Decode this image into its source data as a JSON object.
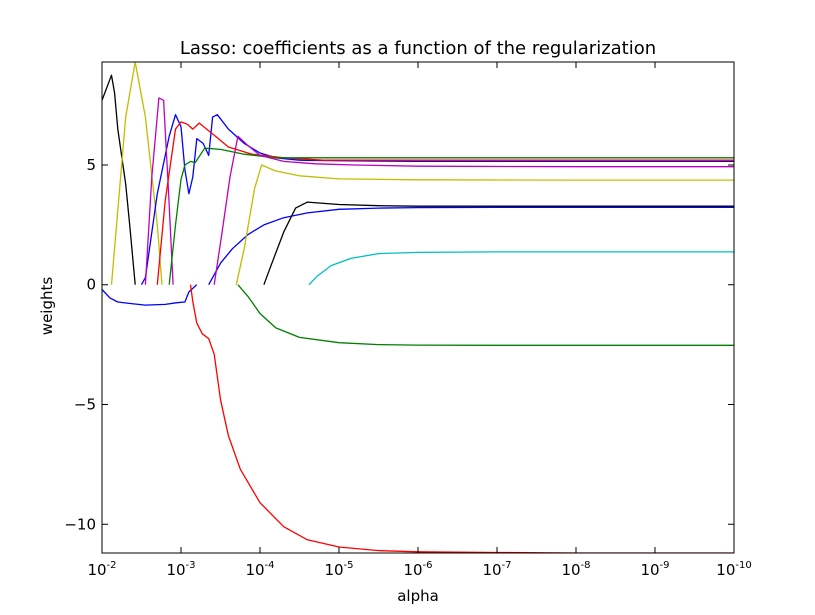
{
  "chart_data": {
    "type": "line",
    "title": "Lasso: coefficients as a function of the regularization",
    "xlabel": "alpha",
    "ylabel": "weights",
    "x_scale": "log-reversed",
    "xlim_log10": [
      -2,
      -10
    ],
    "ylim": [
      -11.2,
      9.3
    ],
    "x_ticks": [
      {
        "base": "10",
        "exp": "-2",
        "log10": -2
      },
      {
        "base": "10",
        "exp": "-3",
        "log10": -3
      },
      {
        "base": "10",
        "exp": "-4",
        "log10": -4
      },
      {
        "base": "10",
        "exp": "-5",
        "log10": -5
      },
      {
        "base": "10",
        "exp": "-6",
        "log10": -6
      },
      {
        "base": "10",
        "exp": "-7",
        "log10": -7
      },
      {
        "base": "10",
        "exp": "-8",
        "log10": -8
      },
      {
        "base": "10",
        "exp": "-9",
        "log10": -9
      },
      {
        "base": "10",
        "exp": "-10",
        "log10": -10
      }
    ],
    "y_ticks": [
      {
        "value": -10,
        "label": "−10"
      },
      {
        "value": -5,
        "label": "−5"
      },
      {
        "value": 0,
        "label": "0"
      },
      {
        "value": 5,
        "label": "5"
      }
    ],
    "grid": false,
    "legend": "none",
    "series": [
      {
        "color": "#0000ff",
        "points": [
          [
            -2,
            -0.2
          ],
          [
            -2.1,
            -0.55
          ],
          [
            -2.2,
            -0.72
          ],
          [
            -2.4,
            -0.8
          ],
          [
            -2.55,
            -0.85
          ],
          [
            -2.8,
            -0.82
          ],
          [
            -2.95,
            -0.75
          ],
          [
            -3.05,
            -0.72
          ],
          [
            -3.1,
            -0.3
          ],
          [
            -3.2,
            0.0
          ]
        ]
      },
      {
        "color": "#000000",
        "points": [
          [
            -2,
            7.7
          ],
          [
            -2.12,
            8.75
          ],
          [
            -2.16,
            8.0
          ],
          [
            -2.2,
            6.5
          ],
          [
            -2.3,
            4.2
          ],
          [
            -2.35,
            2.5
          ],
          [
            -2.42,
            0.0
          ]
        ]
      },
      {
        "color": "#bfbf00",
        "points": [
          [
            -2.12,
            0.0
          ],
          [
            -2.3,
            7.0
          ],
          [
            -2.42,
            9.3
          ],
          [
            -2.55,
            7.0
          ],
          [
            -2.7,
            2.5
          ],
          [
            -2.76,
            0.0
          ]
        ]
      },
      {
        "color": "#0000ff",
        "points": [
          [
            -2.5,
            0.0
          ],
          [
            -2.55,
            0.3
          ],
          [
            -2.7,
            3.8
          ],
          [
            -2.85,
            6.2
          ],
          [
            -2.93,
            7.1
          ],
          [
            -3.0,
            6.6
          ],
          [
            -3.05,
            4.8
          ],
          [
            -3.1,
            3.8
          ],
          [
            -3.15,
            4.5
          ],
          [
            -3.2,
            6.1
          ],
          [
            -3.28,
            5.9
          ],
          [
            -3.35,
            5.4
          ],
          [
            -3.4,
            7.0
          ],
          [
            -3.46,
            7.1
          ],
          [
            -3.6,
            6.5
          ],
          [
            -3.8,
            5.9
          ],
          [
            -4.0,
            5.5
          ],
          [
            -4.2,
            5.3
          ],
          [
            -4.5,
            5.2
          ],
          [
            -5,
            5.18
          ],
          [
            -6,
            5.15
          ],
          [
            -7,
            5.15
          ],
          [
            -8,
            5.15
          ],
          [
            -9,
            5.15
          ],
          [
            -10,
            5.15
          ]
        ]
      },
      {
        "color": "#bf00bf",
        "points": [
          [
            -2.55,
            0.0
          ],
          [
            -2.63,
            4.5
          ],
          [
            -2.72,
            7.8
          ],
          [
            -2.78,
            7.7
          ],
          [
            -2.84,
            4.0
          ],
          [
            -2.9,
            0.0
          ]
        ]
      },
      {
        "color": "#ff0000",
        "points": [
          [
            -2.7,
            0.0
          ],
          [
            -2.8,
            3.5
          ],
          [
            -2.93,
            6.5
          ],
          [
            -3.0,
            6.8
          ],
          [
            -3.08,
            6.7
          ],
          [
            -3.15,
            6.5
          ],
          [
            -3.23,
            6.75
          ],
          [
            -3.4,
            6.3
          ],
          [
            -3.6,
            5.75
          ],
          [
            -3.9,
            5.45
          ],
          [
            -4.3,
            5.3
          ],
          [
            -4.8,
            5.2
          ],
          [
            -6,
            5.2
          ],
          [
            -8,
            5.2
          ],
          [
            -10,
            5.2
          ]
        ]
      },
      {
        "color": "#007f00",
        "points": [
          [
            -2.85,
            0.0
          ],
          [
            -2.93,
            2.5
          ],
          [
            -3.0,
            4.4
          ],
          [
            -3.05,
            5.0
          ],
          [
            -3.12,
            5.15
          ],
          [
            -3.18,
            5.1
          ],
          [
            -3.3,
            5.7
          ],
          [
            -3.5,
            5.65
          ],
          [
            -3.8,
            5.45
          ],
          [
            -4.2,
            5.3
          ],
          [
            -5,
            5.3
          ],
          [
            -6,
            5.3
          ],
          [
            -10,
            5.3
          ]
        ]
      },
      {
        "color": "#ff0000",
        "points": [
          [
            -3.12,
            0.0
          ],
          [
            -3.15,
            -0.7
          ],
          [
            -3.2,
            -1.6
          ],
          [
            -3.27,
            -2.05
          ],
          [
            -3.35,
            -2.25
          ],
          [
            -3.42,
            -2.9
          ],
          [
            -3.5,
            -4.8
          ],
          [
            -3.6,
            -6.3
          ],
          [
            -3.75,
            -7.7
          ],
          [
            -4.0,
            -9.1
          ],
          [
            -4.3,
            -10.1
          ],
          [
            -4.6,
            -10.65
          ],
          [
            -5.0,
            -10.95
          ],
          [
            -5.5,
            -11.1
          ],
          [
            -6,
            -11.15
          ],
          [
            -7,
            -11.18
          ],
          [
            -8,
            -11.2
          ],
          [
            -10,
            -11.2
          ]
        ]
      },
      {
        "color": "#0000ff",
        "points": [
          [
            -3.35,
            0.0
          ],
          [
            -3.5,
            0.9
          ],
          [
            -3.65,
            1.5
          ],
          [
            -3.85,
            2.1
          ],
          [
            -4.05,
            2.5
          ],
          [
            -4.3,
            2.8
          ],
          [
            -4.6,
            3.0
          ],
          [
            -5.0,
            3.15
          ],
          [
            -5.5,
            3.2
          ],
          [
            -6,
            3.22
          ],
          [
            -7,
            3.23
          ],
          [
            -8,
            3.23
          ],
          [
            -10,
            3.23
          ]
        ]
      },
      {
        "color": "#bf00bf",
        "points": [
          [
            -3.42,
            0.0
          ],
          [
            -3.52,
            2.2
          ],
          [
            -3.62,
            4.5
          ],
          [
            -3.72,
            6.2
          ],
          [
            -3.85,
            5.8
          ],
          [
            -4.0,
            5.4
          ],
          [
            -4.3,
            5.15
          ],
          [
            -4.7,
            5.05
          ],
          [
            -5.2,
            5.0
          ],
          [
            -6,
            4.95
          ],
          [
            -8,
            4.93
          ],
          [
            -10,
            4.93
          ]
        ]
      },
      {
        "color": "#bfbf00",
        "points": [
          [
            -3.7,
            0.0
          ],
          [
            -3.8,
            1.5
          ],
          [
            -3.93,
            4.0
          ],
          [
            -4.02,
            5.0
          ],
          [
            -4.2,
            4.75
          ],
          [
            -4.5,
            4.55
          ],
          [
            -5.0,
            4.42
          ],
          [
            -6,
            4.38
          ],
          [
            -8,
            4.37
          ],
          [
            -10,
            4.37
          ]
        ]
      },
      {
        "color": "#007f00",
        "points": [
          [
            -3.72,
            0.0
          ],
          [
            -3.85,
            -0.5
          ],
          [
            -4.0,
            -1.2
          ],
          [
            -4.2,
            -1.8
          ],
          [
            -4.5,
            -2.2
          ],
          [
            -5.0,
            -2.42
          ],
          [
            -5.5,
            -2.5
          ],
          [
            -6,
            -2.52
          ],
          [
            -7,
            -2.53
          ],
          [
            -8,
            -2.53
          ],
          [
            -10,
            -2.53
          ]
        ]
      },
      {
        "color": "#000000",
        "points": [
          [
            -4.05,
            0.0
          ],
          [
            -4.15,
            0.9
          ],
          [
            -4.3,
            2.2
          ],
          [
            -4.45,
            3.2
          ],
          [
            -4.6,
            3.45
          ],
          [
            -5.0,
            3.35
          ],
          [
            -5.5,
            3.3
          ],
          [
            -6,
            3.28
          ],
          [
            -8,
            3.28
          ],
          [
            -10,
            3.28
          ]
        ]
      },
      {
        "color": "#00bfbf",
        "points": [
          [
            -4.62,
            0.0
          ],
          [
            -4.72,
            0.35
          ],
          [
            -4.9,
            0.8
          ],
          [
            -5.15,
            1.1
          ],
          [
            -5.5,
            1.3
          ],
          [
            -6,
            1.35
          ],
          [
            -7,
            1.37
          ],
          [
            -8,
            1.37
          ],
          [
            -10,
            1.37
          ]
        ]
      }
    ]
  }
}
